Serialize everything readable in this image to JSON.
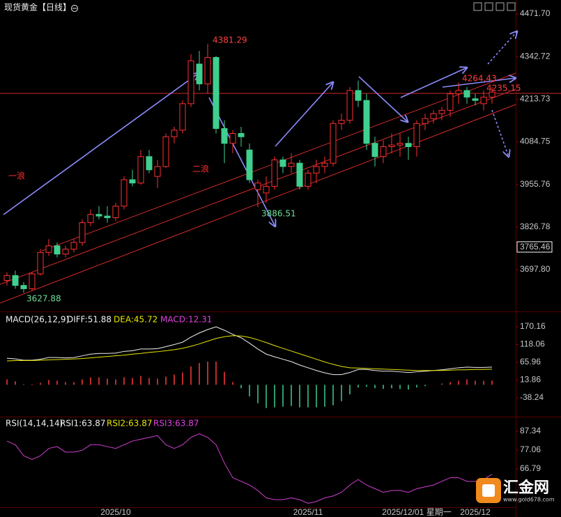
{
  "chart_data": [
    {
      "type": "candlestick",
      "title": "现货黄金【日线】",
      "categories": [
        null,
        null,
        null,
        null,
        null,
        null,
        null,
        null,
        null,
        null,
        null,
        null,
        null,
        "2025/10",
        null,
        null,
        null,
        null,
        null,
        null,
        null,
        null,
        null,
        null,
        null,
        null,
        null,
        null,
        null,
        null,
        null,
        null,
        null,
        null,
        null,
        null,
        "2025/11",
        null,
        null,
        null,
        null,
        null,
        null,
        null,
        null,
        null,
        null,
        null,
        null,
        "2025/12/01 星期一",
        null,
        null,
        null,
        null,
        null,
        null,
        "2025/12",
        null,
        null
      ],
      "open": [
        3665,
        3680,
        3650,
        3640,
        3685,
        3750,
        3770,
        3745,
        3760,
        3780,
        3840,
        3865,
        3860,
        3855,
        3890,
        3970,
        3960,
        4040,
        3980,
        4010,
        4100,
        4120,
        4200,
        4320,
        4260,
        4340,
        4125,
        4080,
        4110,
        4060,
        3940,
        3930,
        3950,
        4030,
        4010,
        4020,
        3950,
        3990,
        4010,
        4020,
        4140,
        4150,
        4240,
        4210,
        4080,
        4040,
        4070,
        4075,
        4080,
        4070,
        4140,
        4155,
        4170,
        4180,
        4230,
        4240,
        4215,
        4200,
        4220
      ],
      "high": [
        3690,
        3695,
        3660,
        3690,
        3760,
        3790,
        3780,
        3770,
        3790,
        3850,
        3880,
        3890,
        3890,
        3900,
        3980,
        4000,
        4060,
        4060,
        4030,
        4110,
        4130,
        4210,
        4350,
        4360,
        4381.29,
        4345,
        4150,
        4120,
        4130,
        4080,
        3970,
        3980,
        4040,
        4040,
        4050,
        4030,
        4000,
        4030,
        4040,
        4150,
        4170,
        4250,
        4270,
        4230,
        4100,
        4090,
        4110,
        4110,
        4100,
        4150,
        4170,
        4180,
        4190,
        4240,
        4264.43,
        4250,
        4230,
        4240,
        4250
      ],
      "low": [
        3650,
        3640,
        3627.88,
        3635,
        3680,
        3740,
        3735,
        3735,
        3750,
        3770,
        3830,
        3850,
        3840,
        3845,
        3880,
        3950,
        3955,
        3990,
        3945,
        4005,
        4080,
        4110,
        4190,
        4240,
        4230,
        4110,
        4020,
        4050,
        4070,
        3960,
        3886.51,
        3900,
        3940,
        3990,
        3990,
        3940,
        3940,
        3960,
        3990,
        4010,
        4120,
        4140,
        4190,
        4060,
        4010,
        4020,
        4050,
        4040,
        4030,
        4040,
        4120,
        4140,
        4150,
        4160,
        4200,
        4200,
        4195,
        4180,
        4200
      ],
      "close": [
        3680,
        3650,
        3640,
        3685,
        3750,
        3770,
        3745,
        3760,
        3780,
        3840,
        3865,
        3860,
        3855,
        3890,
        3970,
        3960,
        4040,
        4000,
        4010,
        4100,
        4120,
        4200,
        4330,
        4260,
        4340,
        4125,
        4080,
        4110,
        4100,
        3970,
        3960,
        3950,
        4030,
        4010,
        4020,
        3950,
        3990,
        4010,
        4020,
        4140,
        4150,
        4240,
        4210,
        4080,
        4040,
        4070,
        4075,
        4080,
        4070,
        4140,
        4155,
        4170,
        4180,
        4230,
        4240,
        4220,
        4210,
        4220,
        4235.15
      ],
      "up_color": "#ff3030",
      "down_color": "#3fcf8e",
      "ylim": [
        3575.5,
        4513.9
      ],
      "yticks": [
        {
          "value": 4471.7,
          "label": "4471.70"
        },
        4342.72,
        4213.73,
        4084.75,
        3955.76,
        3826.78,
        {
          "value": 3697.8,
          "label": "3697.80"
        }
      ],
      "price_marker": 3765.46,
      "annotations": {
        "high": 4381.29,
        "low": 3627.88,
        "swing_low": 3886.51,
        "recent_high": 4264.43,
        "last": 4235.15,
        "wave1": "一浪",
        "wave2": "二浪"
      }
    },
    {
      "type": "macd",
      "legend": [
        "MACD(26,12,9)",
        "DIFF:51.88",
        "DEA:45.72",
        "MACD:12.31"
      ],
      "series": [
        {
          "name": "DIFF",
          "color": "#f0f0f0",
          "values": [
            78,
            76,
            72,
            72,
            75,
            80,
            80,
            79,
            80,
            85,
            90,
            92,
            92,
            93,
            98,
            100,
            105,
            105,
            106,
            112,
            118,
            125,
            140,
            152,
            162,
            170,
            160,
            148,
            138,
            122,
            105,
            90,
            82,
            75,
            68,
            58,
            50,
            42,
            35,
            30,
            30,
            36,
            45,
            45,
            42,
            40,
            40,
            38,
            36,
            38,
            40,
            42,
            44,
            47,
            50,
            52,
            51,
            51,
            51.88
          ]
        },
        {
          "name": "DEA",
          "color": "#e6e600",
          "values": [
            70,
            71,
            71,
            71,
            72,
            73,
            74,
            75,
            76,
            77,
            79,
            81,
            83,
            85,
            87,
            90,
            92,
            95,
            97,
            100,
            103,
            107,
            113,
            120,
            128,
            136,
            141,
            144,
            143,
            139,
            132,
            124,
            115,
            107,
            99,
            91,
            83,
            75,
            67,
            60,
            54,
            50,
            49,
            48,
            47,
            46,
            45,
            44,
            43,
            42,
            42,
            42,
            42,
            43,
            44,
            44,
            45,
            45,
            45.72
          ]
        }
      ],
      "histogram": {
        "name": "MACD",
        "values": [
          16,
          10,
          2,
          2,
          6,
          14,
          12,
          8,
          8,
          16,
          22,
          22,
          18,
          16,
          22,
          20,
          26,
          20,
          18,
          24,
          30,
          36,
          54,
          64,
          68,
          68,
          38,
          8,
          -10,
          -34,
          -54,
          -68,
          -66,
          -64,
          -62,
          -66,
          -66,
          -66,
          -64,
          -60,
          -48,
          -28,
          -8,
          -6,
          -10,
          -12,
          -10,
          -12,
          -14,
          -8,
          -4,
          0,
          4,
          8,
          12,
          16,
          12,
          12,
          12.31
        ],
        "up_color": "#ff3b3b",
        "down_color": "#3fcf8e"
      },
      "ylim": [
        -93.4,
        204.9
      ],
      "yticks": [
        170.16,
        118.06,
        65.96,
        13.86,
        -38.24
      ]
    },
    {
      "type": "line",
      "legend": [
        "RSI(14,14,14)",
        "RSI1:63.87",
        "RSI2:63.87",
        "RSI3:63.87"
      ],
      "series": [
        {
          "color": "#d040d0",
          "values": [
            82,
            80,
            74,
            72,
            74,
            78,
            79,
            76,
            76,
            77,
            80,
            80,
            79,
            78,
            80,
            82,
            83,
            84,
            85,
            80,
            78,
            80,
            84,
            86,
            84,
            80,
            70,
            62,
            60,
            58,
            55,
            51,
            50,
            50,
            51,
            50,
            48,
            49,
            51,
            52,
            54,
            58,
            61,
            58,
            56,
            54,
            55,
            55,
            54,
            56,
            57,
            58,
            60,
            62,
            62,
            60,
            60,
            61,
            63.87
          ]
        }
      ],
      "ylim": [
        45.1,
        94.2
      ],
      "yticks": [
        87.34,
        77.06,
        66.79
      ]
    }
  ],
  "logo": {
    "name": "汇金网",
    "url": "www.gold678.com"
  }
}
